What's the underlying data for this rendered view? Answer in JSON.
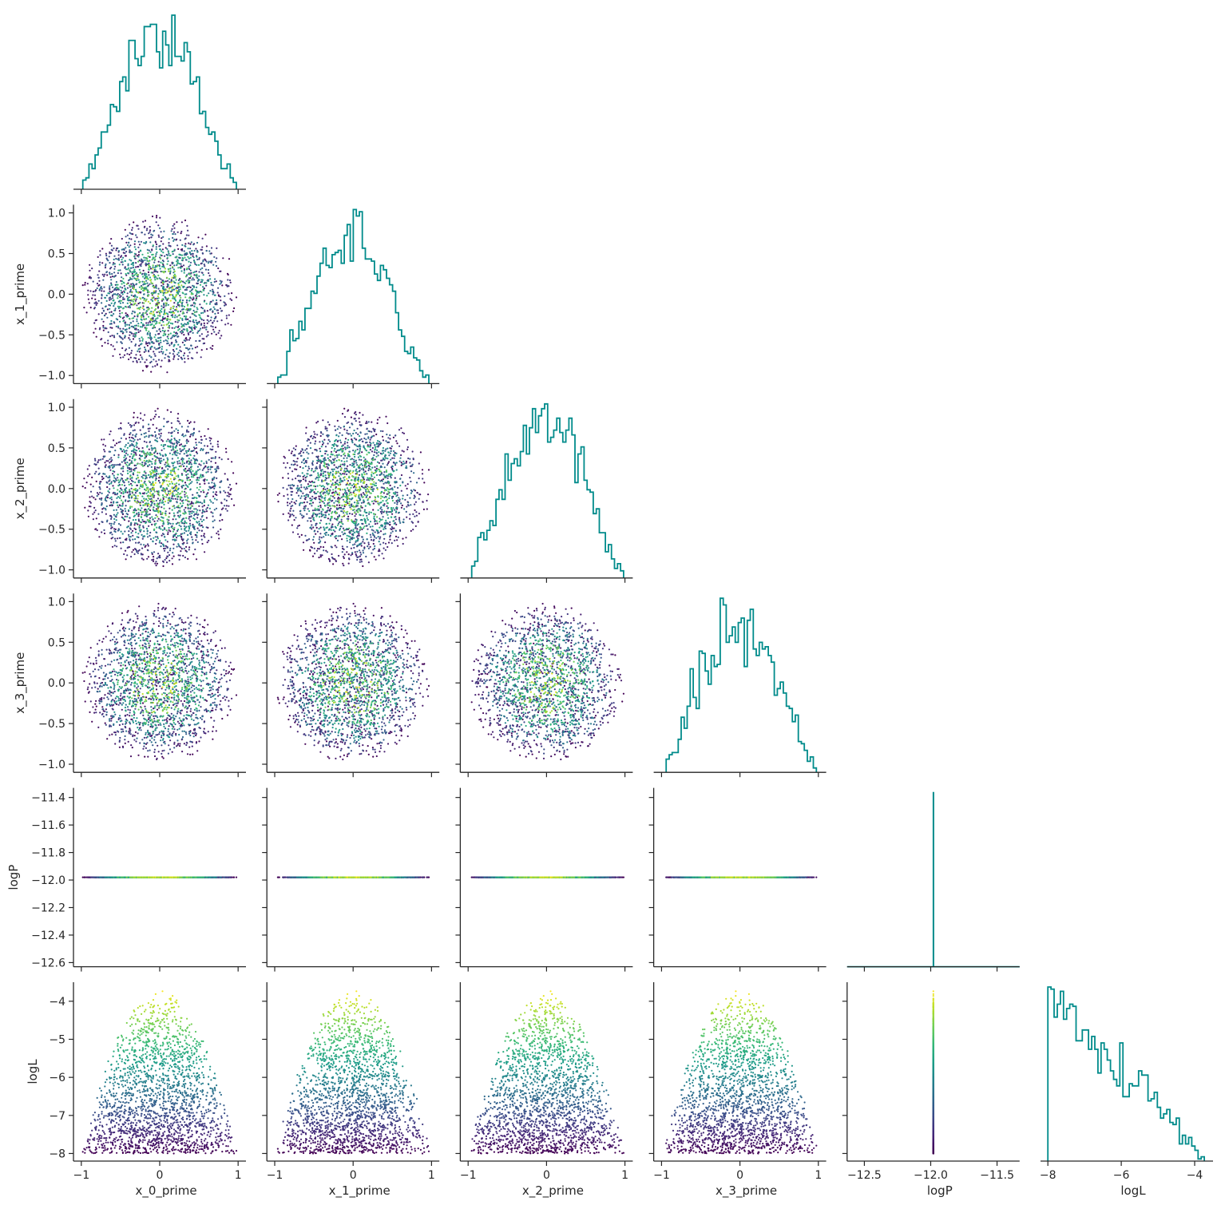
{
  "chart_data": {
    "type": "scatter",
    "subtype": "corner-plot",
    "variables": [
      "x_0_prime",
      "x_1_prime",
      "x_2_prime",
      "x_3_prime",
      "logP",
      "logL"
    ],
    "ranges": {
      "x_0_prime": [
        -1.1,
        1.1
      ],
      "x_1_prime": [
        -1.1,
        1.1
      ],
      "x_2_prime": [
        -1.1,
        1.1
      ],
      "x_3_prime": [
        -1.1,
        1.1
      ],
      "logP": [
        -12.63,
        -11.33
      ],
      "logL": [
        -8.2,
        -3.5
      ]
    },
    "ticks": {
      "x_0_prime": [
        -1,
        0,
        1
      ],
      "x_1_prime": [
        -1,
        0,
        1
      ],
      "x_2_prime": [
        -1,
        0,
        1
      ],
      "x_3_prime": [
        -1,
        0,
        1
      ],
      "logP": [
        -12.5,
        -12.0,
        -11.5
      ],
      "logL": [
        -8,
        -6,
        -4
      ]
    },
    "x_tick_labels": {
      "x_0_prime": [
        "−1",
        "0",
        "1"
      ],
      "x_1_prime": [
        "−1",
        "0",
        "1"
      ],
      "x_2_prime": [
        "−1",
        "0",
        "1"
      ],
      "x_3_prime": [
        "−1",
        "0",
        "1"
      ],
      "logP": [
        "−12.5",
        "−12.0",
        "−11.5"
      ],
      "logL": [
        "−8",
        "−6",
        "−4"
      ]
    },
    "y_ticks": {
      "x_1_prime": [
        -1.0,
        -0.5,
        0.0,
        0.5,
        1.0
      ],
      "x_2_prime": [
        -1.0,
        -0.5,
        0.0,
        0.5,
        1.0
      ],
      "x_3_prime": [
        -1.0,
        -0.5,
        0.0,
        0.5,
        1.0
      ],
      "logP": [
        -12.6,
        -12.4,
        -12.2,
        -12.0,
        -11.8,
        -11.6,
        -11.4
      ],
      "logL": [
        -8,
        -7,
        -6,
        -5,
        -4
      ]
    },
    "y_tick_labels": {
      "x_1_prime": [
        "−1.0",
        "−0.5",
        "0.0",
        "0.5",
        "1.0"
      ],
      "x_2_prime": [
        "−1.0",
        "−0.5",
        "0.0",
        "0.5",
        "1.0"
      ],
      "x_3_prime": [
        "−1.0",
        "−0.5",
        "0.0",
        "0.5",
        "1.0"
      ],
      "logP": [
        "−12.6",
        "−12.4",
        "−12.2",
        "−12.0",
        "−11.8",
        "−11.6",
        "−11.4"
      ],
      "logL": [
        "−8",
        "−7",
        "−6",
        "−5",
        "−4"
      ]
    },
    "x_labels": [
      "x_0_prime",
      "x_1_prime",
      "x_2_prime",
      "x_3_prime",
      "logP",
      "logL"
    ],
    "y_labels": [
      "",
      "x_1_prime",
      "x_2_prime",
      "x_3_prime",
      "logP",
      "logL"
    ],
    "samples": {
      "count": 2000,
      "distribution": "uniform in unit 4-ball",
      "logP_value": -11.98,
      "logL_range": [
        -8,
        -3.7
      ],
      "color_by": "logL",
      "colormap": "viridis"
    },
    "diagonal": {
      "type": "step-histogram",
      "bins": 50,
      "color": "#008b8b"
    },
    "grid": false,
    "layout": "lower-triangle"
  }
}
